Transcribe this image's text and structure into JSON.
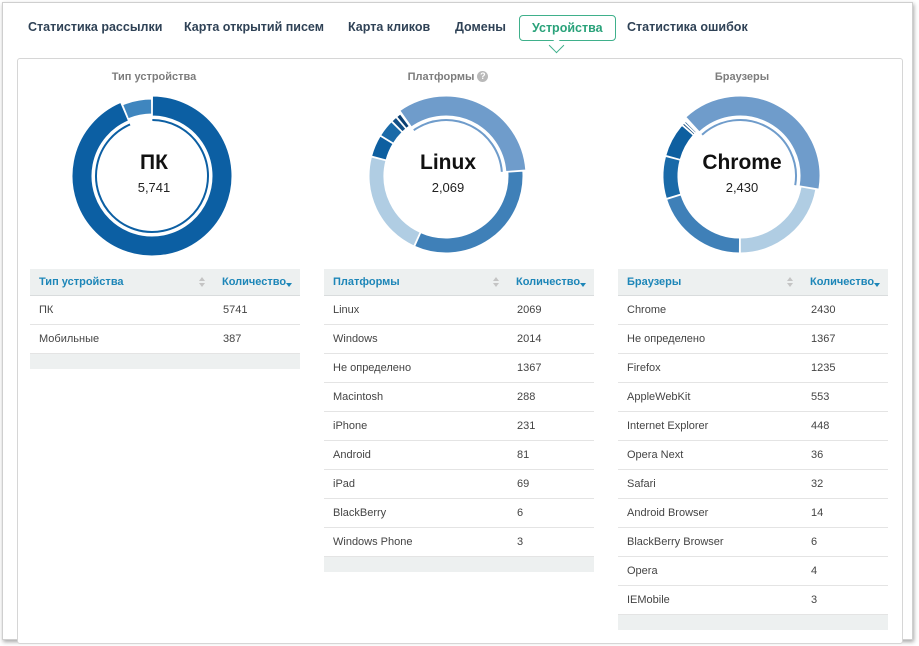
{
  "tabs": [
    {
      "label": "Статистика рассылки"
    },
    {
      "label": "Карта открытий писем"
    },
    {
      "label": "Карта кликов"
    },
    {
      "label": "Домены"
    },
    {
      "label": "Устройства",
      "active": true
    },
    {
      "label": "Статистика ошибок"
    }
  ],
  "colors": {
    "accent": "#3fb08b",
    "header_text": "#1d86b8"
  },
  "panels": [
    {
      "title": "Тип устройства",
      "help": false,
      "center_label": "ПК",
      "center_value": "5,741",
      "columns": [
        "Тип устройства",
        "Количество"
      ],
      "rows": [
        [
          "ПК",
          "5741"
        ],
        [
          "Мобильные",
          "387"
        ]
      ],
      "chart_data": {
        "type": "pie",
        "labels": [
          "ПК",
          "Мобильные"
        ],
        "values": [
          5741,
          387
        ],
        "colors": [
          "#0c5fa3",
          "#3f86bf"
        ],
        "highlight": 0
      }
    },
    {
      "title": "Платформы",
      "help": true,
      "center_label": "Linux",
      "center_value": "2,069",
      "columns": [
        "Платформы",
        "Количество"
      ],
      "rows": [
        [
          "Linux",
          "2069"
        ],
        [
          "Windows",
          "2014"
        ],
        [
          "Не определено",
          "1367"
        ],
        [
          "Macintosh",
          "288"
        ],
        [
          "iPhone",
          "231"
        ],
        [
          "Android",
          "81"
        ],
        [
          "iPad",
          "69"
        ],
        [
          "BlackBerry",
          "6"
        ],
        [
          "Windows Phone",
          "3"
        ]
      ],
      "chart_data": {
        "type": "pie",
        "labels": [
          "Linux",
          "Windows",
          "Не определено",
          "Macintosh",
          "iPhone",
          "Android",
          "iPad",
          "BlackBerry",
          "Windows Phone"
        ],
        "values": [
          2069,
          2014,
          1367,
          288,
          231,
          81,
          69,
          6,
          3
        ],
        "colors": [
          "#6f9ccb",
          "#3f80b8",
          "#b0cde3",
          "#0e5fa0",
          "#1a6aa8",
          "#124f86",
          "#0b3f72",
          "#3b7fb8",
          "#5a95c6"
        ],
        "highlight": 0
      }
    },
    {
      "title": "Браузеры",
      "help": false,
      "center_label": "Chrome",
      "center_value": "2,430",
      "columns": [
        "Браузеры",
        "Количество"
      ],
      "rows": [
        [
          "Chrome",
          "2430"
        ],
        [
          "Не определено",
          "1367"
        ],
        [
          "Firefox",
          "1235"
        ],
        [
          "AppleWebKit",
          "553"
        ],
        [
          "Internet Explorer",
          "448"
        ],
        [
          "Opera Next",
          "36"
        ],
        [
          "Safari",
          "32"
        ],
        [
          "Android Browser",
          "14"
        ],
        [
          "BlackBerry Browser",
          "6"
        ],
        [
          "Opera",
          "4"
        ],
        [
          "IEMobile",
          "3"
        ]
      ],
      "chart_data": {
        "type": "pie",
        "labels": [
          "Chrome",
          "Не определено",
          "Firefox",
          "AppleWebKit",
          "Internet Explorer",
          "Opera Next",
          "Safari",
          "Android Browser",
          "BlackBerry Browser",
          "Opera",
          "IEMobile"
        ],
        "values": [
          2430,
          1367,
          1235,
          553,
          448,
          36,
          32,
          14,
          6,
          4,
          3
        ],
        "colors": [
          "#6f9ccb",
          "#b0cde3",
          "#3f80b8",
          "#1a6aa8",
          "#0e5fa0",
          "#0b3f72",
          "#124f86",
          "#2e74b0",
          "#0c5590",
          "#5a95c6",
          "#174f84"
        ],
        "highlight": 0
      }
    }
  ]
}
